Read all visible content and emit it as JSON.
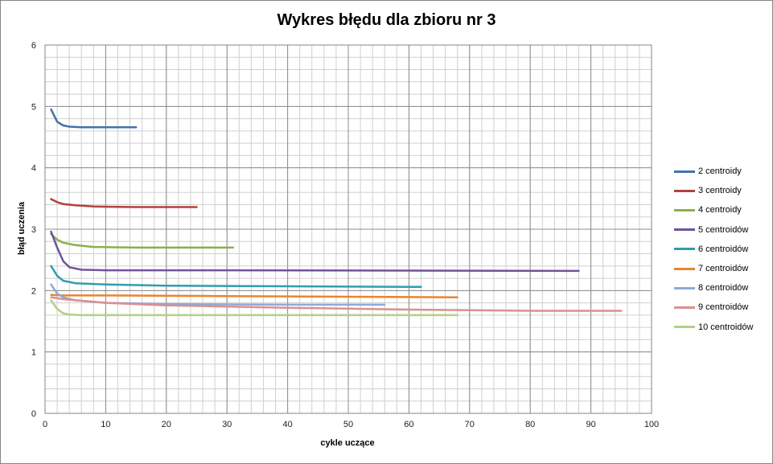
{
  "chart_data": {
    "type": "line",
    "title": "Wykres błędu dla zbioru nr 3",
    "xlabel": "cykle uczące",
    "ylabel": "błąd uczenia",
    "xlim": [
      0,
      100
    ],
    "ylim": [
      0,
      6
    ],
    "x_ticks": [
      0,
      10,
      20,
      30,
      40,
      50,
      60,
      70,
      80,
      90,
      100
    ],
    "y_ticks": [
      0,
      1,
      2,
      3,
      4,
      5,
      6
    ],
    "grid": true,
    "legend": "right",
    "series": [
      {
        "name": "2 centroidy",
        "color": "#4472A8",
        "points": [
          [
            1,
            4.95
          ],
          [
            2,
            4.75
          ],
          [
            3,
            4.69
          ],
          [
            4,
            4.67
          ],
          [
            6,
            4.66
          ],
          [
            10,
            4.66
          ],
          [
            15,
            4.66
          ]
        ]
      },
      {
        "name": "3 centroidy",
        "color": "#B3413D",
        "points": [
          [
            1,
            3.49
          ],
          [
            2,
            3.44
          ],
          [
            3,
            3.41
          ],
          [
            5,
            3.39
          ],
          [
            8,
            3.37
          ],
          [
            15,
            3.36
          ],
          [
            25,
            3.36
          ]
        ]
      },
      {
        "name": "4 centroidy",
        "color": "#8BAF4A",
        "points": [
          [
            1,
            2.92
          ],
          [
            2,
            2.83
          ],
          [
            3,
            2.78
          ],
          [
            5,
            2.74
          ],
          [
            8,
            2.71
          ],
          [
            15,
            2.7
          ],
          [
            31,
            2.7
          ]
        ]
      },
      {
        "name": "5 centroidów",
        "color": "#6F539C",
        "points": [
          [
            1,
            2.96
          ],
          [
            2,
            2.7
          ],
          [
            3,
            2.48
          ],
          [
            4,
            2.38
          ],
          [
            6,
            2.34
          ],
          [
            10,
            2.33
          ],
          [
            30,
            2.33
          ],
          [
            88,
            2.32
          ]
        ]
      },
      {
        "name": "6 centroidów",
        "color": "#2E9EAF",
        "points": [
          [
            1,
            2.4
          ],
          [
            2,
            2.24
          ],
          [
            3,
            2.16
          ],
          [
            5,
            2.12
          ],
          [
            10,
            2.1
          ],
          [
            20,
            2.08
          ],
          [
            40,
            2.07
          ],
          [
            62,
            2.06
          ]
        ]
      },
      {
        "name": "7 centroidów",
        "color": "#E8862E",
        "points": [
          [
            1,
            1.93
          ],
          [
            3,
            1.92
          ],
          [
            10,
            1.92
          ],
          [
            30,
            1.91
          ],
          [
            50,
            1.9
          ],
          [
            68,
            1.89
          ]
        ]
      },
      {
        "name": "8 centroidów",
        "color": "#8FA9D9",
        "points": [
          [
            1,
            2.1
          ],
          [
            2,
            1.95
          ],
          [
            3,
            1.89
          ],
          [
            5,
            1.84
          ],
          [
            10,
            1.8
          ],
          [
            20,
            1.78
          ],
          [
            40,
            1.77
          ],
          [
            56,
            1.77
          ]
        ]
      },
      {
        "name": "9 centroidów",
        "color": "#D9918F",
        "points": [
          [
            1,
            1.89
          ],
          [
            3,
            1.86
          ],
          [
            10,
            1.8
          ],
          [
            20,
            1.76
          ],
          [
            40,
            1.72
          ],
          [
            60,
            1.69
          ],
          [
            80,
            1.67
          ],
          [
            95,
            1.67
          ]
        ]
      },
      {
        "name": "10 centroidów",
        "color": "#B2D085",
        "points": [
          [
            1,
            1.84
          ],
          [
            2,
            1.7
          ],
          [
            3,
            1.63
          ],
          [
            4,
            1.61
          ],
          [
            6,
            1.6
          ],
          [
            20,
            1.6
          ],
          [
            68,
            1.6
          ]
        ]
      }
    ]
  }
}
